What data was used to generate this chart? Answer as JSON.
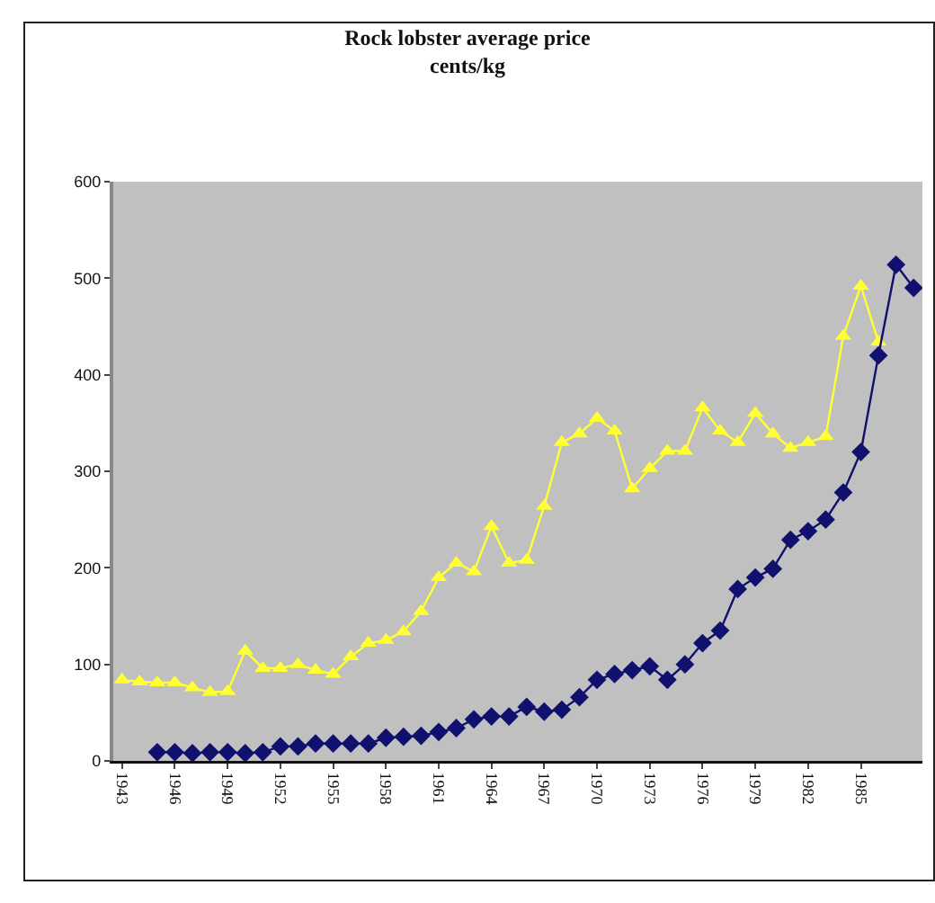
{
  "chart_data": {
    "type": "line",
    "title": "Rock lobster average price",
    "subtitle": "cents/kg",
    "categories": [
      "1943",
      null,
      null,
      "1946",
      null,
      null,
      "1949",
      null,
      null,
      "1952",
      null,
      null,
      "1955",
      null,
      null,
      "1958",
      null,
      null,
      "1961",
      null,
      null,
      "1964",
      null,
      null,
      "1967",
      null,
      null,
      "1970",
      null,
      null,
      "1973",
      null,
      null,
      "1976",
      null,
      null,
      "1979",
      null,
      null,
      "1982",
      null,
      null,
      "1985",
      null,
      null,
      null
    ],
    "series": [
      {
        "color": "#ffff33",
        "marker": "triangle",
        "values": [
          84,
          82,
          81,
          81,
          76,
          71,
          72,
          114,
          96,
          96,
          100,
          94,
          90,
          108,
          122,
          125,
          134,
          155,
          190,
          205,
          196,
          243,
          205,
          208,
          264,
          330,
          339,
          355,
          342,
          282,
          303,
          321,
          321,
          366,
          342,
          330,
          360,
          339,
          324,
          330,
          336,
          440,
          492,
          434,
          null,
          null
        ]
      },
      {
        "color": "#10106e",
        "marker": "diamond",
        "values": [
          null,
          null,
          9,
          9,
          8,
          9,
          9,
          8,
          9,
          15,
          15,
          18,
          18,
          18,
          18,
          24,
          25,
          26,
          30,
          34,
          43,
          46,
          46,
          56,
          51,
          53,
          66,
          84,
          90,
          94,
          98,
          84,
          100,
          122,
          135,
          178,
          190,
          199,
          229,
          238,
          250,
          278,
          320,
          420,
          514,
          490
        ]
      }
    ],
    "ylim": [
      0,
      600
    ],
    "yticks": [
      0,
      100,
      200,
      300,
      400,
      500,
      600
    ]
  }
}
